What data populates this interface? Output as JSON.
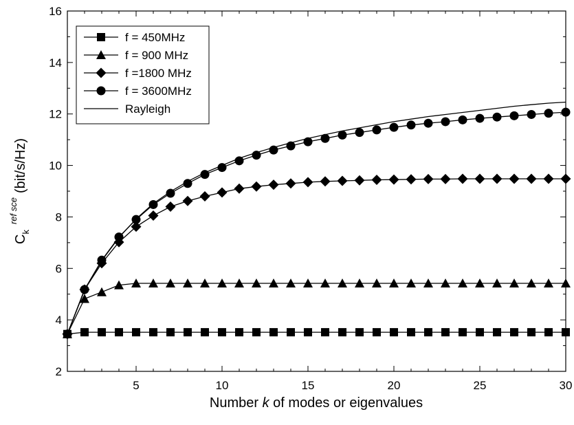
{
  "chart_data": {
    "type": "line",
    "xlabel": {
      "prefix": "Number ",
      "italic": "k",
      "suffix": " of modes or eigenvalues"
    },
    "ylabel": {
      "base": "C",
      "sub": "k",
      "sup": "ref sce",
      "unit": "(bit/s/Hz)"
    },
    "xlim": [
      1,
      30
    ],
    "ylim": [
      2,
      16
    ],
    "xticks": [
      5,
      10,
      15,
      20,
      25,
      30
    ],
    "yticks": [
      2,
      4,
      6,
      8,
      10,
      12,
      14,
      16
    ],
    "grid": false,
    "legend_position": "top-left",
    "x": [
      1,
      2,
      3,
      4,
      5,
      6,
      7,
      8,
      9,
      10,
      11,
      12,
      13,
      14,
      15,
      16,
      17,
      18,
      19,
      20,
      21,
      22,
      23,
      24,
      25,
      26,
      27,
      28,
      29,
      30
    ],
    "series": [
      {
        "name": "f = 450MHz",
        "marker": "square",
        "values": [
          3.45,
          3.52,
          3.52,
          3.52,
          3.52,
          3.52,
          3.52,
          3.52,
          3.52,
          3.52,
          3.52,
          3.52,
          3.52,
          3.52,
          3.52,
          3.52,
          3.52,
          3.52,
          3.52,
          3.52,
          3.52,
          3.52,
          3.52,
          3.52,
          3.52,
          3.52,
          3.52,
          3.52,
          3.52,
          3.52
        ]
      },
      {
        "name": "f = 900 MHz",
        "marker": "triangle",
        "values": [
          3.45,
          4.82,
          5.08,
          5.35,
          5.42,
          5.42,
          5.42,
          5.42,
          5.42,
          5.42,
          5.42,
          5.42,
          5.42,
          5.42,
          5.42,
          5.42,
          5.42,
          5.42,
          5.42,
          5.42,
          5.42,
          5.42,
          5.42,
          5.42,
          5.42,
          5.42,
          5.42,
          5.42,
          5.42,
          5.42
        ]
      },
      {
        "name": "f =1800 MHz",
        "marker": "diamond",
        "values": [
          3.45,
          5.18,
          6.2,
          7.02,
          7.62,
          8.05,
          8.4,
          8.62,
          8.8,
          8.95,
          9.1,
          9.18,
          9.25,
          9.3,
          9.35,
          9.38,
          9.4,
          9.42,
          9.44,
          9.45,
          9.46,
          9.47,
          9.47,
          9.48,
          9.48,
          9.48,
          9.48,
          9.48,
          9.48,
          9.48
        ]
      },
      {
        "name": "f = 3600MHz",
        "marker": "circle",
        "values": [
          3.45,
          5.18,
          6.32,
          7.22,
          7.9,
          8.48,
          8.92,
          9.3,
          9.65,
          9.92,
          10.18,
          10.4,
          10.6,
          10.76,
          10.92,
          11.05,
          11.18,
          11.28,
          11.38,
          11.48,
          11.57,
          11.64,
          11.7,
          11.77,
          11.83,
          11.88,
          11.93,
          11.98,
          12.03,
          12.07
        ]
      },
      {
        "name": "Rayleigh",
        "marker": "none",
        "values": [
          3.45,
          5.15,
          6.3,
          7.2,
          7.92,
          8.52,
          8.98,
          9.38,
          9.72,
          10.0,
          10.28,
          10.5,
          10.7,
          10.88,
          11.05,
          11.2,
          11.34,
          11.46,
          11.58,
          11.7,
          11.8,
          11.9,
          11.98,
          12.06,
          12.14,
          12.22,
          12.3,
          12.36,
          12.42,
          12.46
        ]
      }
    ]
  }
}
